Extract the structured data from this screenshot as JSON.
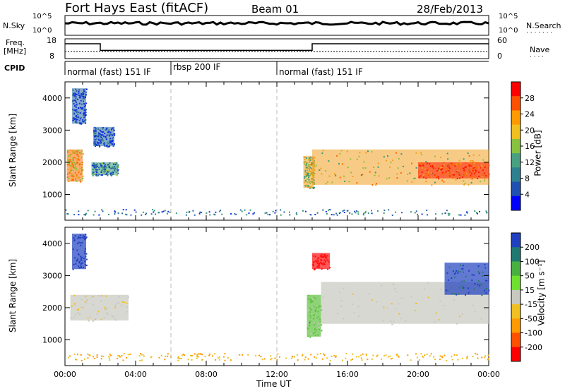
{
  "header": {
    "station": "Fort Hays East (fitACF)",
    "beam": "Beam 01",
    "date": "28/Feb/2013"
  },
  "noise_panel": {
    "left_label": "N.Sky",
    "right_label": "N.Search",
    "left_ticks": [
      "10^5",
      "10^0"
    ],
    "right_ticks": [
      "10^5",
      "10^0"
    ]
  },
  "freq_panel": {
    "left_label_1": "Freq.",
    "left_label_2": "[MHz]",
    "right_label": "Nave",
    "left_ticks": [
      "18",
      "8"
    ],
    "right_ticks": [
      "60",
      "0"
    ]
  },
  "cpid": {
    "label": "CPID",
    "segments": [
      {
        "start": 0,
        "end": 6,
        "text": "normal (fast) 151 IF"
      },
      {
        "start": 6,
        "end": 12,
        "text": "rbsp 200 IF"
      },
      {
        "start": 12,
        "end": 24,
        "text": "normal (fast) 151 IF"
      }
    ]
  },
  "power_panel": {
    "ylabel": "Slant Range [km]",
    "yticks": [
      1000,
      2000,
      3000,
      4000
    ],
    "colorbar_label": "Power [dB]",
    "colorbar_ticks": [
      "28",
      "24",
      "20",
      "16",
      "12",
      "8",
      "4"
    ],
    "colorbar_colors": [
      "#ff0000",
      "#ff5000",
      "#ff9a00",
      "#f0c020",
      "#88c040",
      "#48a080",
      "#2e8090",
      "#2050b0",
      "#0000ff"
    ]
  },
  "velocity_panel": {
    "ylabel": "Slant Range [km]",
    "yticks": [
      1000,
      2000,
      3000,
      4000
    ],
    "colorbar_label": "Velocity [m s⁻¹]",
    "colorbar_ticks": [
      "200",
      "100",
      "50",
      "15",
      "-15",
      "-50",
      "-100",
      "-200"
    ],
    "colorbar_colors": [
      "#2040c0",
      "#207870",
      "#48b040",
      "#70e030",
      "#c8c8c0",
      "#f0c020",
      "#ff9a00",
      "#ff5000",
      "#ff0000"
    ]
  },
  "x_axis": {
    "label": "Time UT",
    "ticks": [
      "00:00",
      "04:00",
      "08:00",
      "12:00",
      "16:00",
      "20:00",
      "00:00"
    ]
  },
  "chart_data": {
    "type": "heatmap",
    "time_range_hours": [
      0,
      24
    ],
    "range_km": [
      200,
      4500
    ],
    "frequency_steps": [
      {
        "start": 0,
        "end": 2,
        "mhz": 15
      },
      {
        "start": 2,
        "end": 14,
        "mhz": 11
      },
      {
        "start": 14,
        "end": 24,
        "mhz": 15
      }
    ],
    "power_patches": [
      {
        "t": [
          0.1,
          1.0
        ],
        "r": [
          1400,
          2400
        ],
        "db": 22
      },
      {
        "t": [
          0.4,
          1.2
        ],
        "r": [
          3200,
          4300
        ],
        "db": 6
      },
      {
        "t": [
          1.5,
          3.0
        ],
        "r": [
          1600,
          2000
        ],
        "db": 12
      },
      {
        "t": [
          1.6,
          2.8
        ],
        "r": [
          2500,
          3100
        ],
        "db": 8
      },
      {
        "t": [
          13.5,
          14.1
        ],
        "r": [
          1200,
          2200
        ],
        "db": 18
      },
      {
        "t": [
          14.0,
          24.0
        ],
        "r": [
          1300,
          2400
        ],
        "db": 20
      },
      {
        "t": [
          20.0,
          24.0
        ],
        "r": [
          1500,
          2000
        ],
        "db": 28
      }
    ],
    "velocity_patches": [
      {
        "t": [
          0.3,
          3.6
        ],
        "r": [
          1600,
          2400
        ],
        "v": 0
      },
      {
        "t": [
          0.4,
          1.2
        ],
        "r": [
          3200,
          4300
        ],
        "v": 200
      },
      {
        "t": [
          13.7,
          14.5
        ],
        "r": [
          1100,
          2400
        ],
        "v": 50
      },
      {
        "t": [
          14.0,
          15.0
        ],
        "r": [
          3200,
          3700
        ],
        "v": -200
      },
      {
        "t": [
          14.5,
          24.0
        ],
        "r": [
          1500,
          2800
        ],
        "v": 0
      },
      {
        "t": [
          21.5,
          24.0
        ],
        "r": [
          2400,
          3400
        ],
        "v": 150
      }
    ]
  }
}
